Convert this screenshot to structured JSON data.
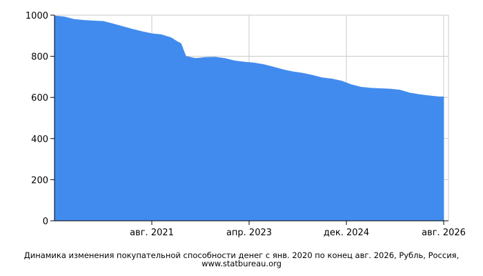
{
  "chart_data": {
    "type": "area",
    "title": "",
    "xlabel": "",
    "ylabel": "",
    "caption": "Динамика изменения покупательной способности денег с янв. 2020 по конец авг. 2026, Рубль, Россия, www.statbureau.org",
    "ylim": [
      0,
      1000
    ],
    "y_ticks": [
      0,
      200,
      400,
      600,
      800,
      1000
    ],
    "x_ticks": [
      "авг. 2021",
      "апр. 2023",
      "дек. 2024",
      "авг. 2026"
    ],
    "grid": true,
    "colors": {
      "fill": "#428bee",
      "grid": "#c8c8c8",
      "axis": "#000000"
    },
    "series": [
      {
        "x": [
          "2020-01",
          "2020-03",
          "2020-05",
          "2020-07",
          "2020-09",
          "2020-11",
          "2021-01",
          "2021-03",
          "2021-05",
          "2021-07",
          "2021-09",
          "2021-11",
          "2022-01",
          "2022-02",
          "2022-03",
          "2022-04",
          "2022-06",
          "2022-08",
          "2022-10",
          "2022-12",
          "2023-02",
          "2023-04",
          "2023-06",
          "2023-08",
          "2023-10",
          "2023-12",
          "2024-02",
          "2024-04",
          "2024-06",
          "2024-08",
          "2024-10",
          "2024-12",
          "2025-02",
          "2025-04",
          "2025-06",
          "2025-08",
          "2025-10",
          "2025-12",
          "2026-02",
          "2026-04",
          "2026-06",
          "2026-08"
        ],
        "values": [
          997,
          992,
          980,
          975,
          972,
          970,
          958,
          945,
          932,
          920,
          910,
          905,
          890,
          875,
          862,
          800,
          790,
          795,
          796,
          790,
          778,
          772,
          768,
          760,
          748,
          735,
          725,
          718,
          708,
          696,
          690,
          680,
          662,
          650,
          645,
          643,
          641,
          636,
          622,
          614,
          608,
          603
        ]
      }
    ]
  }
}
